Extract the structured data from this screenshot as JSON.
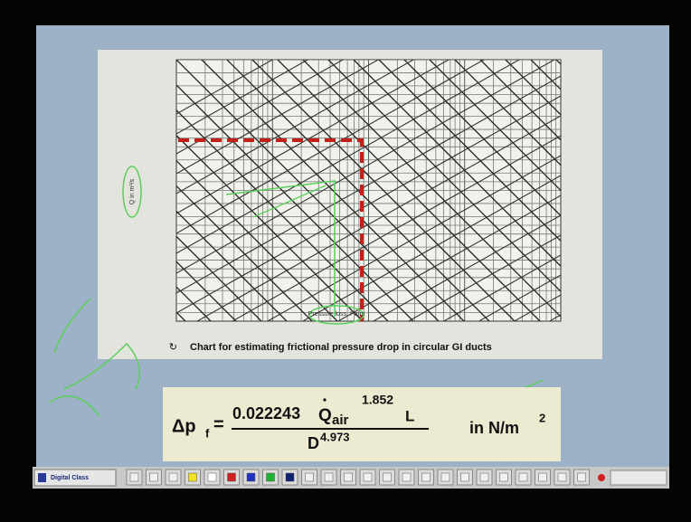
{
  "slide": {
    "chart": {
      "y_axis_label": "Q in m³/s",
      "x_axis_label": "Pressure loss, Pa/m",
      "caption": "Chart for estimating frictional pressure drop in circular GI ducts"
    },
    "formula": {
      "lhs": "Δp",
      "lhs_sub": "f",
      "numerator_coef": "0.022243",
      "flow": "Q",
      "flow_sub": "air",
      "flow_exp": "1.852",
      "length": "L",
      "denominator": "D",
      "denominator_exp": "4.973",
      "units": "in N/m",
      "units_exp": "2"
    }
  },
  "taskbar": {
    "app": "Digital Class"
  }
}
